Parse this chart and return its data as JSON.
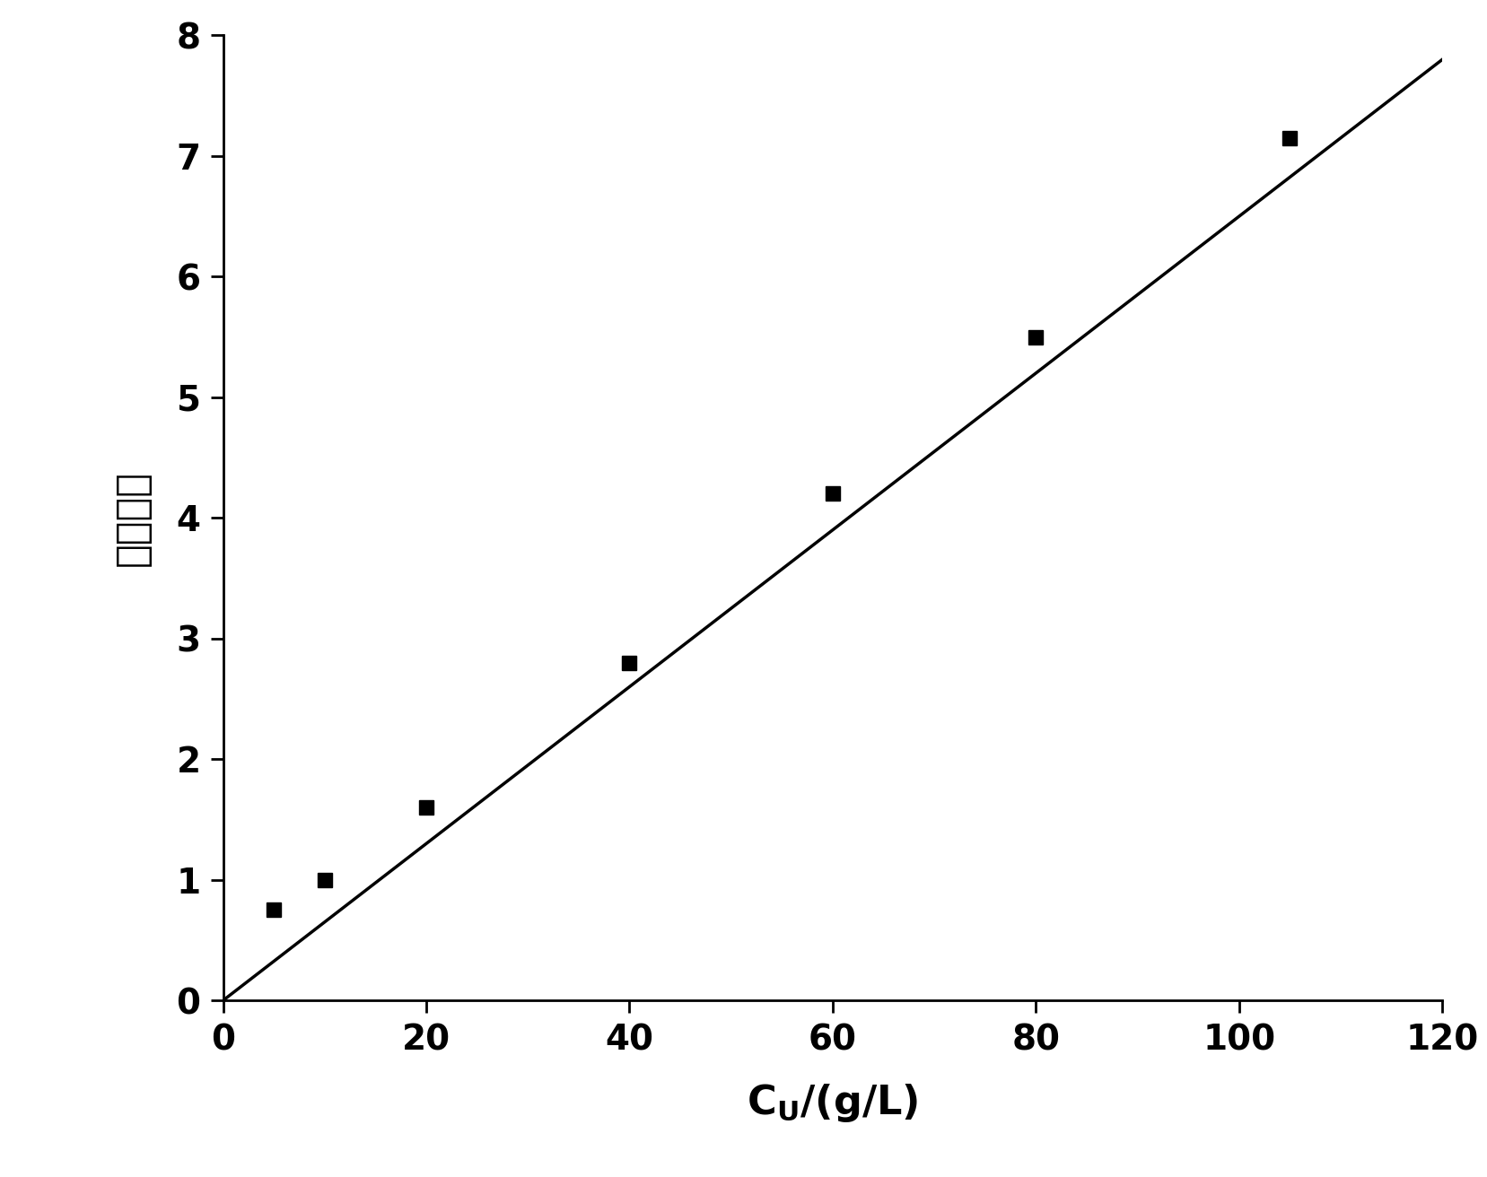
{
  "data_x": [
    5,
    10,
    20,
    40,
    60,
    80,
    105
  ],
  "data_y": [
    0.75,
    1.0,
    1.6,
    2.8,
    4.2,
    5.5,
    7.15
  ],
  "line_x": [
    0,
    120
  ],
  "line_y": [
    0.0,
    7.8
  ],
  "xlim": [
    0,
    120
  ],
  "ylim": [
    0,
    8
  ],
  "xticks": [
    0,
    20,
    40,
    60,
    80,
    100,
    120
  ],
  "yticks": [
    0,
    1,
    2,
    3,
    4,
    5,
    6,
    7,
    8
  ],
  "ylabel": "相对强度",
  "line_color": "#000000",
  "marker_color": "#000000",
  "background_color": "#ffffff",
  "linewidth": 2.5,
  "marker_size": 12,
  "tick_fontsize": 28,
  "label_fontsize": 32,
  "spine_linewidth": 2.0
}
